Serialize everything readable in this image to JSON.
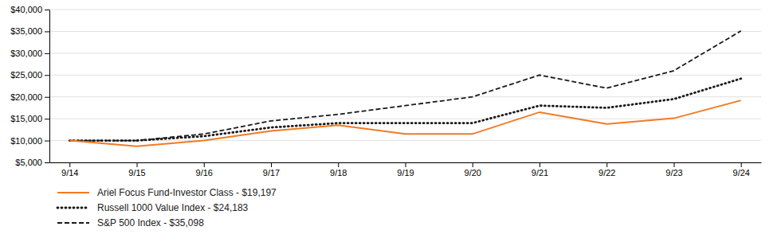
{
  "chart_data": {
    "type": "line",
    "categories": [
      "9/14",
      "9/15",
      "9/16",
      "9/17",
      "9/18",
      "9/19",
      "9/20",
      "9/21",
      "9/22",
      "9/23",
      "9/24"
    ],
    "series": [
      {
        "name": "Ariel Focus Fund-Investor Class - $19,197",
        "color": "#F47920",
        "line_style": "solid",
        "values": [
          10000,
          8700,
          10000,
          12200,
          13500,
          11500,
          11500,
          16500,
          13800,
          15100,
          19197
        ]
      },
      {
        "name": "Russell 1000 Value Index - $24,183",
        "color": "#1a1a1a",
        "line_style": "dotted",
        "values": [
          10000,
          10000,
          11000,
          13000,
          14000,
          14000,
          14000,
          18000,
          17500,
          19500,
          24183
        ]
      },
      {
        "name": "S&P 500 Index - $35,098",
        "color": "#1a1a1a",
        "line_style": "dashed",
        "values": [
          10000,
          10000,
          11500,
          14500,
          16000,
          18000,
          20000,
          25000,
          22000,
          26000,
          35098
        ]
      }
    ],
    "ylim": [
      5000,
      40000
    ],
    "yticks": [
      {
        "value": 5000,
        "label": "$5,000"
      },
      {
        "value": 10000,
        "label": "$10,000"
      },
      {
        "value": 15000,
        "label": "$15,000"
      },
      {
        "value": 20000,
        "label": "$20,000"
      },
      {
        "value": 25000,
        "label": "$25,000"
      },
      {
        "value": 30000,
        "label": "$30,000"
      },
      {
        "value": 35000,
        "label": "$35,000"
      },
      {
        "value": 40000,
        "label": "$40,000"
      }
    ],
    "grid": true,
    "legend": "bottom"
  }
}
